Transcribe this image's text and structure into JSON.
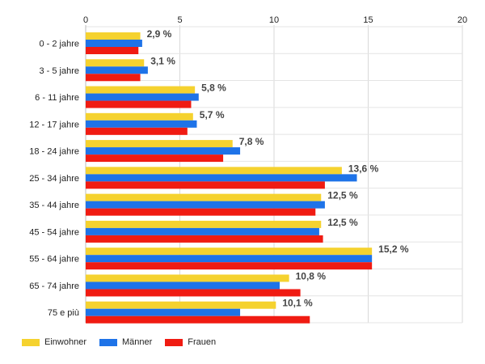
{
  "chart_data": {
    "type": "bar",
    "orientation": "horizontal",
    "categories": [
      "0 - 2 jahre",
      "3 - 5 jahre",
      "6 - 11 jahre",
      "12 - 17 jahre",
      "18 - 24 jahre",
      "25 - 34 jahre",
      "35 - 44 jahre",
      "45 - 54 jahre",
      "55 - 64 jahre",
      "65 - 74 jahre",
      "75 e più"
    ],
    "series": [
      {
        "name": "Einwohner",
        "color": "#f5d22f",
        "values": [
          2.9,
          3.1,
          5.8,
          5.7,
          7.8,
          13.6,
          12.5,
          12.5,
          15.2,
          10.8,
          10.1
        ]
      },
      {
        "name": "Männer",
        "color": "#1e73e8",
        "values": [
          3.0,
          3.3,
          6.0,
          5.9,
          8.2,
          14.4,
          12.7,
          12.4,
          15.2,
          10.3,
          8.2
        ]
      },
      {
        "name": "Frauen",
        "color": "#f01b12",
        "values": [
          2.8,
          2.9,
          5.6,
          5.4,
          7.3,
          12.7,
          12.2,
          12.6,
          15.2,
          11.4,
          11.9
        ]
      }
    ],
    "data_labels": [
      "2,9 %",
      "3,1 %",
      "5,8 %",
      "5,7 %",
      "7,8 %",
      "13,6 %",
      "12,5 %",
      "12,5 %",
      "15,2 %",
      "10,8 %",
      "10,1 %"
    ],
    "x_ticks": [
      "0",
      "5",
      "10",
      "15",
      "20"
    ],
    "xlim": [
      0,
      20
    ],
    "grid": true,
    "legend_position": "bottom-left"
  }
}
